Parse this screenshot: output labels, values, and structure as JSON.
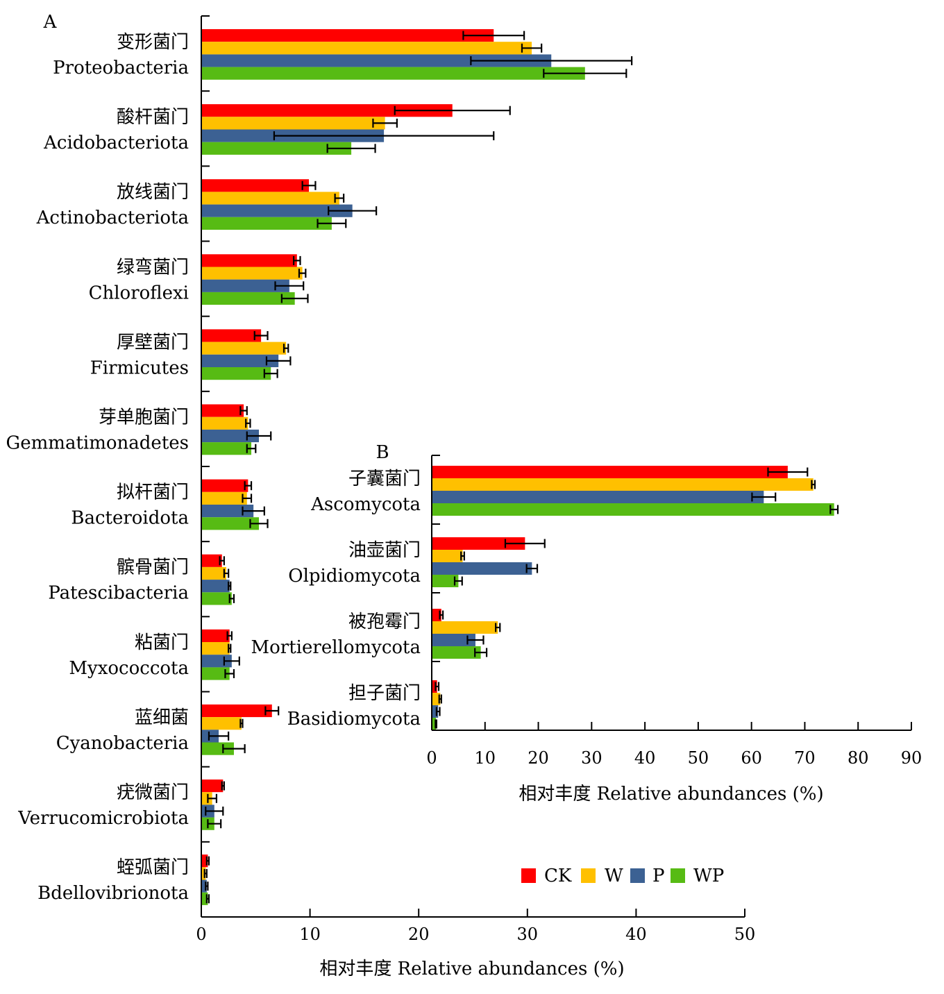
{
  "legend": [
    {
      "key": "CK",
      "label": "CK",
      "color": "#ff0000"
    },
    {
      "key": "W",
      "label": "W",
      "color": "#ffc000"
    },
    {
      "key": "P",
      "label": "P",
      "color": "#3c6193"
    },
    {
      "key": "WP",
      "label": "WP",
      "color": "#57bb14"
    }
  ],
  "chart_data": [
    {
      "type": "bar",
      "orientation": "horizontal",
      "panel_label": "A",
      "xlabel": "相对丰度 Relative abundances (%)",
      "xlim": [
        0,
        50
      ],
      "xticks": [
        0,
        10,
        20,
        30,
        40,
        50
      ],
      "categories": [
        {
          "zh": "变形菌门",
          "en": "Proteobacteria"
        },
        {
          "zh": "酸杆菌门",
          "en": "Acidobacteriota"
        },
        {
          "zh": "放线菌门",
          "en": "Actinobacteriota"
        },
        {
          "zh": "绿弯菌门",
          "en": "Chloroflexi"
        },
        {
          "zh": "厚壁菌门",
          "en": "Firmicutes"
        },
        {
          "zh": "芽单胞菌门",
          "en": "Gemmatimonadetes"
        },
        {
          "zh": "拟杆菌门",
          "en": "Bacteroidota"
        },
        {
          "zh": "髌骨菌门",
          "en": "Patescibacteria"
        },
        {
          "zh": "粘菌门",
          "en": "Myxococcota"
        },
        {
          "zh": "蓝细菌",
          "en": "Cyanobacteria"
        },
        {
          "zh": "疣微菌门",
          "en": "Verrucomicrobiota"
        },
        {
          "zh": "蛭弧菌门",
          "en": "Bdellovibrionota"
        }
      ],
      "series": [
        {
          "name": "CK",
          "values": [
            26.9,
            23.1,
            9.9,
            8.8,
            5.5,
            3.9,
            4.3,
            1.9,
            2.6,
            6.5,
            2.0,
            0.6
          ],
          "errors": [
            2.8,
            5.3,
            0.6,
            0.3,
            0.6,
            0.3,
            0.3,
            0.2,
            0.2,
            0.6,
            0.1,
            0.1
          ]
        },
        {
          "name": "W",
          "values": [
            30.4,
            16.9,
            12.7,
            9.3,
            7.8,
            4.3,
            4.2,
            2.3,
            2.6,
            3.7,
            1.0,
            0.4
          ],
          "errors": [
            0.9,
            1.1,
            0.4,
            0.3,
            0.2,
            0.2,
            0.4,
            0.2,
            0.1,
            0.1,
            0.4,
            0.1
          ]
        },
        {
          "name": "P",
          "values": [
            32.2,
            16.8,
            13.9,
            8.1,
            7.1,
            5.3,
            4.8,
            2.6,
            2.8,
            1.6,
            1.2,
            0.5
          ],
          "errors": [
            7.4,
            10.1,
            2.2,
            1.3,
            1.1,
            1.1,
            1.0,
            0.1,
            0.7,
            0.9,
            0.8,
            0.1
          ]
        },
        {
          "name": "WP",
          "values": [
            35.3,
            13.8,
            12.0,
            8.6,
            6.4,
            4.6,
            5.3,
            2.8,
            2.6,
            3.0,
            1.2,
            0.6
          ],
          "errors": [
            3.8,
            2.2,
            1.3,
            1.2,
            0.6,
            0.4,
            0.8,
            0.2,
            0.4,
            1.0,
            0.6,
            0.1
          ]
        }
      ]
    },
    {
      "type": "bar",
      "orientation": "horizontal",
      "panel_label": "B",
      "xlabel": "相对丰度 Relative abundances (%)",
      "xlim": [
        0,
        90
      ],
      "xticks": [
        0,
        10,
        20,
        30,
        40,
        50,
        60,
        70,
        80,
        90
      ],
      "categories": [
        {
          "zh": "子囊菌门",
          "en": "Ascomycota"
        },
        {
          "zh": "油壶菌门",
          "en": "Olpidiomycota"
        },
        {
          "zh": "被孢霉门",
          "en": "Mortierellomycota"
        },
        {
          "zh": "担子菌门",
          "en": "Basidiomycota"
        }
      ],
      "series": [
        {
          "name": "CK",
          "values": [
            66.8,
            17.5,
            1.8,
            1.0
          ],
          "errors": [
            3.7,
            3.7,
            0.3,
            0.3
          ]
        },
        {
          "name": "W",
          "values": [
            71.6,
            5.8,
            12.4,
            1.6
          ],
          "errors": [
            0.3,
            0.3,
            0.4,
            0.2
          ]
        },
        {
          "name": "P",
          "values": [
            62.3,
            18.8,
            8.2,
            1.2
          ],
          "errors": [
            2.2,
            1.0,
            1.5,
            0.3
          ]
        },
        {
          "name": "WP",
          "values": [
            75.5,
            5.0,
            9.2,
            0.8
          ],
          "errors": [
            0.7,
            0.7,
            1.1,
            0.1
          ]
        }
      ]
    }
  ]
}
